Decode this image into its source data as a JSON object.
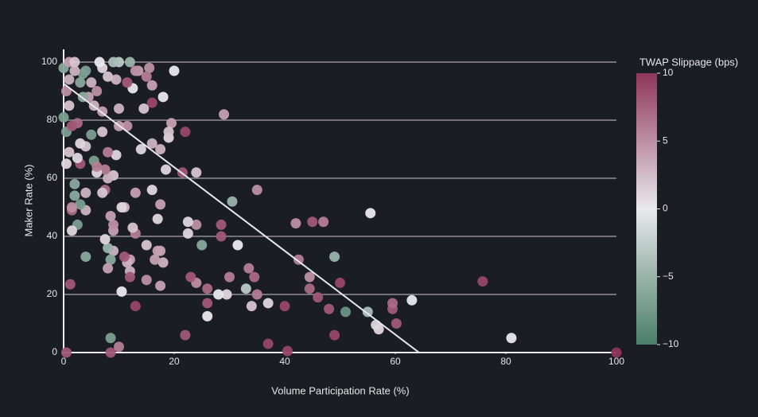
{
  "chart_data": {
    "type": "scatter",
    "x_label": "Volume Participation Rate (%)",
    "y_label": "Maker Rate (%)",
    "colorbar_title": "TWAP Slippage (bps)",
    "xlim": [
      0,
      100
    ],
    "xticks": [
      0,
      20,
      40,
      60,
      80,
      100
    ],
    "ylim": [
      0,
      104.4
    ],
    "yticks": [
      0,
      20,
      40,
      60,
      80,
      100
    ],
    "grid": true,
    "clim": [
      -10,
      10
    ],
    "cticks": [
      10,
      5,
      0,
      {
        "value": -5,
        "label": "−5"
      },
      {
        "value": -10,
        "label": "−10"
      }
    ],
    "colorscale": [
      "#4a7f68",
      "#e9e9ec",
      "#8f3558"
    ],
    "trendline": {
      "x": [
        0,
        64.3
      ],
      "y": [
        92.6,
        0
      ],
      "color": "#e8e8ec"
    },
    "x": [
      100,
      81,
      75.8,
      63,
      60.2,
      59.5,
      59.5,
      57,
      56.5,
      55.5,
      55,
      51,
      50,
      49,
      49,
      48,
      47,
      46,
      45,
      44.5,
      44.5,
      42.5,
      42,
      40.5,
      40,
      37,
      37,
      35,
      35,
      34.5,
      34,
      33.5,
      33,
      31.5,
      30.5,
      30,
      29.5,
      29,
      28.5,
      28.5,
      28,
      26,
      26,
      26,
      25,
      24,
      24,
      23,
      22.5,
      22.5,
      22,
      24,
      22,
      21.5,
      20,
      19.5,
      19,
      19,
      18.5,
      18,
      17.5,
      17.5,
      17.5,
      17.5,
      17,
      17,
      16.5,
      16,
      16,
      16,
      16,
      15.5,
      15,
      15,
      15,
      14.5,
      14,
      13.5,
      13,
      13,
      13,
      13,
      12.5,
      12.5,
      12,
      12,
      12,
      11.5,
      11.5,
      11.5,
      11,
      11,
      10.5,
      10.5,
      10,
      10,
      10,
      10,
      9.5,
      9.5,
      9,
      9,
      9,
      9,
      8.5,
      8.5,
      8.5,
      8.5,
      8,
      8,
      8,
      8,
      7.5,
      7.5,
      7.5,
      7,
      7,
      7,
      6.5,
      6,
      5.5,
      5.5,
      5,
      4.5,
      4,
      4,
      4,
      4,
      3.5,
      3.5,
      3,
      3,
      3,
      2.5,
      2.5,
      2.5,
      2,
      2,
      1.5,
      1.5,
      1.5,
      1.2,
      1,
      1,
      1,
      0.5,
      0.5,
      0.5,
      0,
      0,
      1,
      2,
      3,
      2,
      4,
      5,
      6,
      7,
      8,
      9,
      12,
      0.5,
      1.5,
      6,
      18
    ],
    "values": [
      0,
      5,
      24.5,
      18,
      10,
      15,
      17,
      8,
      9.5,
      48,
      14,
      14,
      24,
      33,
      6,
      15,
      45,
      19,
      45,
      22,
      26,
      32,
      44.5,
      0.5,
      16,
      17,
      3,
      56,
      20,
      26,
      16,
      29,
      22,
      37,
      52,
      26,
      20,
      82,
      40,
      44,
      20,
      17,
      12.5,
      22,
      37,
      44,
      24,
      26,
      45,
      41,
      6,
      62,
      76,
      62,
      97,
      79,
      74,
      76,
      63,
      31,
      51,
      35,
      70,
      23,
      35,
      46,
      32,
      56,
      72,
      86,
      92,
      98,
      95,
      37,
      25,
      84,
      70,
      97,
      97,
      41,
      16,
      55,
      43,
      91,
      28,
      32,
      26,
      78,
      31,
      93,
      33,
      50,
      50,
      21,
      2,
      100,
      78,
      84,
      94,
      68,
      42,
      35,
      44,
      61,
      47,
      32,
      5,
      0,
      36,
      29,
      60,
      69,
      56,
      39,
      63,
      55,
      98,
      76,
      100,
      62,
      66,
      85,
      75,
      88,
      33,
      49,
      55,
      71,
      96,
      88,
      72,
      65,
      51,
      44,
      67,
      79,
      58,
      54,
      42,
      49,
      50,
      23.5,
      69,
      85,
      94,
      0,
      65,
      76,
      81,
      98,
      100,
      97,
      93,
      100,
      97,
      93,
      90,
      83,
      95,
      100,
      100,
      90,
      78,
      64,
      88
    ],
    "color_values": [
      10,
      0,
      9,
      0,
      8,
      8,
      7,
      1,
      1,
      0,
      -4,
      -8,
      9,
      -5,
      9,
      8,
      6,
      8,
      8,
      7,
      5,
      6,
      5,
      9,
      9,
      1,
      9,
      5,
      6,
      7,
      2,
      6,
      -3,
      0,
      -5,
      6,
      1,
      4,
      8,
      8,
      0,
      8,
      0,
      7,
      -6,
      5,
      5,
      8,
      1,
      1,
      8,
      2,
      9,
      8,
      0,
      4,
      1,
      2,
      1,
      3,
      4,
      4,
      3,
      4,
      4,
      1,
      4,
      1,
      3,
      9,
      4,
      5,
      6,
      2,
      5,
      2,
      1,
      4,
      5,
      6,
      9,
      4,
      2,
      0,
      3,
      4,
      8,
      5,
      3,
      8,
      8,
      3,
      1,
      0,
      6,
      -3,
      4,
      3,
      3,
      1,
      4,
      3,
      5,
      2,
      4,
      -6,
      -7,
      8,
      -5,
      4,
      3,
      6,
      7,
      1,
      6,
      2,
      1,
      2,
      0,
      1,
      -7,
      3,
      -7,
      4,
      -6,
      3,
      3,
      2,
      -7,
      -6,
      1,
      8,
      -7,
      -7,
      1,
      7,
      -6,
      -6,
      1,
      7,
      5,
      8,
      2,
      2,
      3,
      8,
      1,
      -7,
      -7,
      -6,
      4,
      3,
      -6,
      2,
      -7,
      3,
      5,
      4,
      2,
      -4,
      -5,
      5,
      8,
      6,
      0
    ]
  }
}
